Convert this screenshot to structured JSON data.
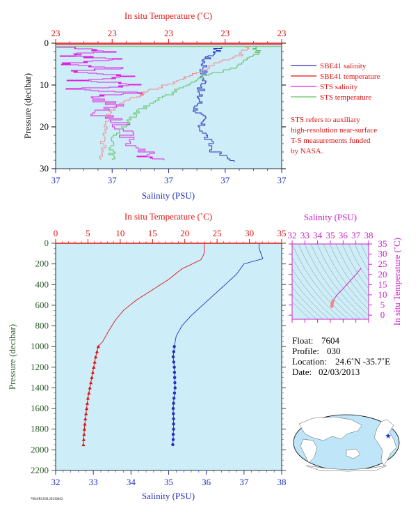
{
  "colors": {
    "panel_bg": "#cdeef8",
    "salinity": "#1f2fbf",
    "temperature": "#e01010",
    "sts_salinity": "#e020e0",
    "sts_temperature": "#60c060",
    "sts_temp_pink": "#f08a8a",
    "pressure_axis": "#2a5a2a",
    "ts_magenta": "#d020c8"
  },
  "top_chart": {
    "top_axis_title": "In situ Temperature (˚C)",
    "top_tick_labels": [
      "23",
      "23",
      "23",
      "23",
      "23"
    ],
    "y_label": "Pressure (decibar)",
    "y_ticks": [
      0,
      10,
      20,
      30
    ],
    "x_label": "Salinity (PSU)",
    "bottom_tick_labels": [
      "37",
      "37",
      "37",
      "37",
      "37"
    ],
    "legend": [
      {
        "key": "sbe41_salinity",
        "label": "SBE41 salinity"
      },
      {
        "key": "sbe41_temperature",
        "label": "SBE41 temperature"
      },
      {
        "key": "sts_salinity",
        "label": "STS salinity"
      },
      {
        "key": "sts_temperature",
        "label": "STS temperature"
      }
    ],
    "note_lines": [
      "STS refers to auxiliary",
      "high-resolution near-surface",
      "T-S measurements funded",
      "by NASA."
    ]
  },
  "main_chart": {
    "top_axis_title": "In situ Temperature (˚C)",
    "x_label": "Salinity (PSU)",
    "y_label": "Pressure (decibar)",
    "code_text": "7604/EC030.20130402"
  },
  "ts_diagram": {
    "top_axis_title": "Salinity (PSU)",
    "right_axis_title": "In situ Temperature (˚C)"
  },
  "info": {
    "float_label": "Float:",
    "float": "7604",
    "profile_label": "Profile:",
    "profile": "030",
    "location_label": "Location:",
    "location": "24.6˚N  -35.7˚E",
    "date_label": "Date:",
    "date": "02/03/2013"
  },
  "chart_data": [
    {
      "type": "line",
      "title": "In situ Temperature (˚C)",
      "xlabel": "Salinity (PSU)",
      "ylabel": "Pressure (decibar)",
      "ylim": [
        30,
        0
      ],
      "series": [
        {
          "name": "SBE41 salinity",
          "x": [
            0.72,
            0.71,
            0.66,
            0.66,
            0.65,
            0.66,
            0.63,
            0.64,
            0.62,
            0.65,
            0.64,
            0.67,
            0.7,
            0.79
          ],
          "pressure": [
            1,
            2.5,
            4,
            6,
            8,
            10,
            12,
            14,
            16,
            18,
            20,
            23,
            26,
            28.5
          ]
        },
        {
          "name": "SBE41 temperature",
          "x": [
            0.85,
            0.82,
            0.71,
            0.64,
            0.57,
            0.5,
            0.39,
            0.36,
            0.27,
            0.24,
            0.23,
            0.21,
            0.21,
            0.2
          ],
          "pressure": [
            1,
            3,
            5,
            7,
            8.5,
            10,
            12,
            13,
            15,
            17,
            19,
            22,
            25,
            28
          ]
        },
        {
          "name": "STS salinity",
          "x": [
            0.02,
            0.25,
            0.03,
            0.3,
            0.02,
            0.28,
            0.05,
            0.35,
            0.08,
            0.4,
            0.1,
            0.35,
            0.12,
            0.3,
            0.2,
            0.28,
            0.3,
            0.35,
            0.4,
            0.48
          ],
          "pressure": [
            1,
            2,
            3,
            4,
            5,
            6,
            7,
            8,
            9,
            10,
            11,
            12,
            13,
            15,
            17,
            19,
            22,
            25,
            27,
            28
          ]
        },
        {
          "name": "STS temperature",
          "x": [
            0.88,
            0.9,
            0.84,
            0.8,
            0.66,
            0.58,
            0.52,
            0.44,
            0.38,
            0.34,
            0.3,
            0.26,
            0.25,
            0.25
          ],
          "pressure": [
            1,
            2.5,
            4,
            6,
            8,
            10,
            12,
            14,
            16,
            18,
            20,
            23,
            26,
            28
          ]
        }
      ]
    },
    {
      "type": "line",
      "title": "In situ Temperature (˚C)",
      "xlabel": "Salinity (PSU)",
      "ylabel": "Pressure (decibar)",
      "ylim": [
        2200,
        0
      ],
      "x_bottom": {
        "label": "Salinity (PSU)",
        "min": 32,
        "max": 38,
        "ticks": [
          32,
          33,
          34,
          35,
          36,
          37,
          38
        ]
      },
      "x_top": {
        "label": "In situ Temperature (˚C)",
        "min": 0,
        "max": 35,
        "ticks": [
          0,
          5,
          10,
          15,
          20,
          25,
          30,
          35
        ]
      },
      "y_ticks": [
        0,
        200,
        400,
        600,
        800,
        1000,
        1200,
        1400,
        1600,
        1800,
        2000,
        2200
      ],
      "series": [
        {
          "name": "Salinity",
          "axis": "bottom",
          "x": [
            37.4,
            37.4,
            37.5,
            37.0,
            36.8,
            36.5,
            36.2,
            35.9,
            35.6,
            35.35,
            35.2,
            35.15,
            35.12,
            35.15,
            35.16,
            35.17,
            35.14,
            35.12,
            35.13,
            35.13,
            35.12,
            35.12,
            35.11
          ],
          "pressure": [
            0,
            50,
            150,
            200,
            300,
            400,
            500,
            600,
            700,
            800,
            900,
            1000,
            1100,
            1200,
            1300,
            1400,
            1500,
            1600,
            1700,
            1800,
            1850,
            1900,
            1950
          ]
        },
        {
          "name": "Temperature",
          "axis": "top",
          "x": [
            23.0,
            23.0,
            22.5,
            19.5,
            17.5,
            15.0,
            12.5,
            10.5,
            9.2,
            8.2,
            7.3,
            6.6,
            6.2,
            5.9,
            5.6,
            5.3,
            5.0,
            4.8,
            4.6,
            4.45,
            4.3
          ],
          "pressure": [
            0,
            100,
            160,
            250,
            350,
            450,
            550,
            650,
            750,
            850,
            950,
            1000,
            1100,
            1200,
            1300,
            1400,
            1500,
            1600,
            1700,
            1800,
            1950
          ]
        }
      ],
      "markers_from_pressure": 1000
    },
    {
      "type": "scatter",
      "title": "Salinity (PSU)",
      "xlabel": "Salinity (PSU)",
      "ylabel": "In situ Temperature (˚C)",
      "xlim": [
        32,
        38
      ],
      "ylim": [
        -2,
        35
      ],
      "x_ticks": [
        32,
        33,
        34,
        35,
        36,
        37,
        38
      ],
      "y_ticks": [
        0,
        5,
        10,
        15,
        20,
        25,
        30,
        35
      ],
      "series": [
        {
          "name": "T-S",
          "x": [
            37.4,
            37.0,
            36.5,
            36.0,
            35.6,
            35.35,
            35.2,
            35.15,
            35.13,
            35.12
          ],
          "y": [
            23.0,
            20.0,
            16.5,
            13.0,
            10.5,
            8.5,
            7.0,
            6.0,
            5.2,
            4.3
          ]
        }
      ]
    }
  ]
}
